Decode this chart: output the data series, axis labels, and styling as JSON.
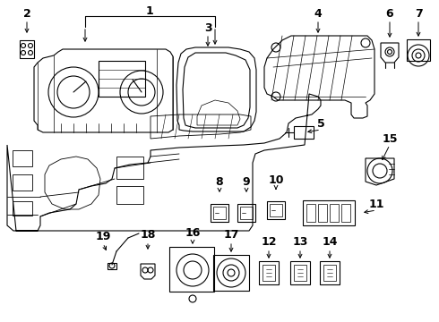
{
  "background": "#ffffff",
  "line_color": "#000000",
  "lw": 0.8,
  "figsize": [
    4.9,
    3.6
  ],
  "dpi": 100
}
